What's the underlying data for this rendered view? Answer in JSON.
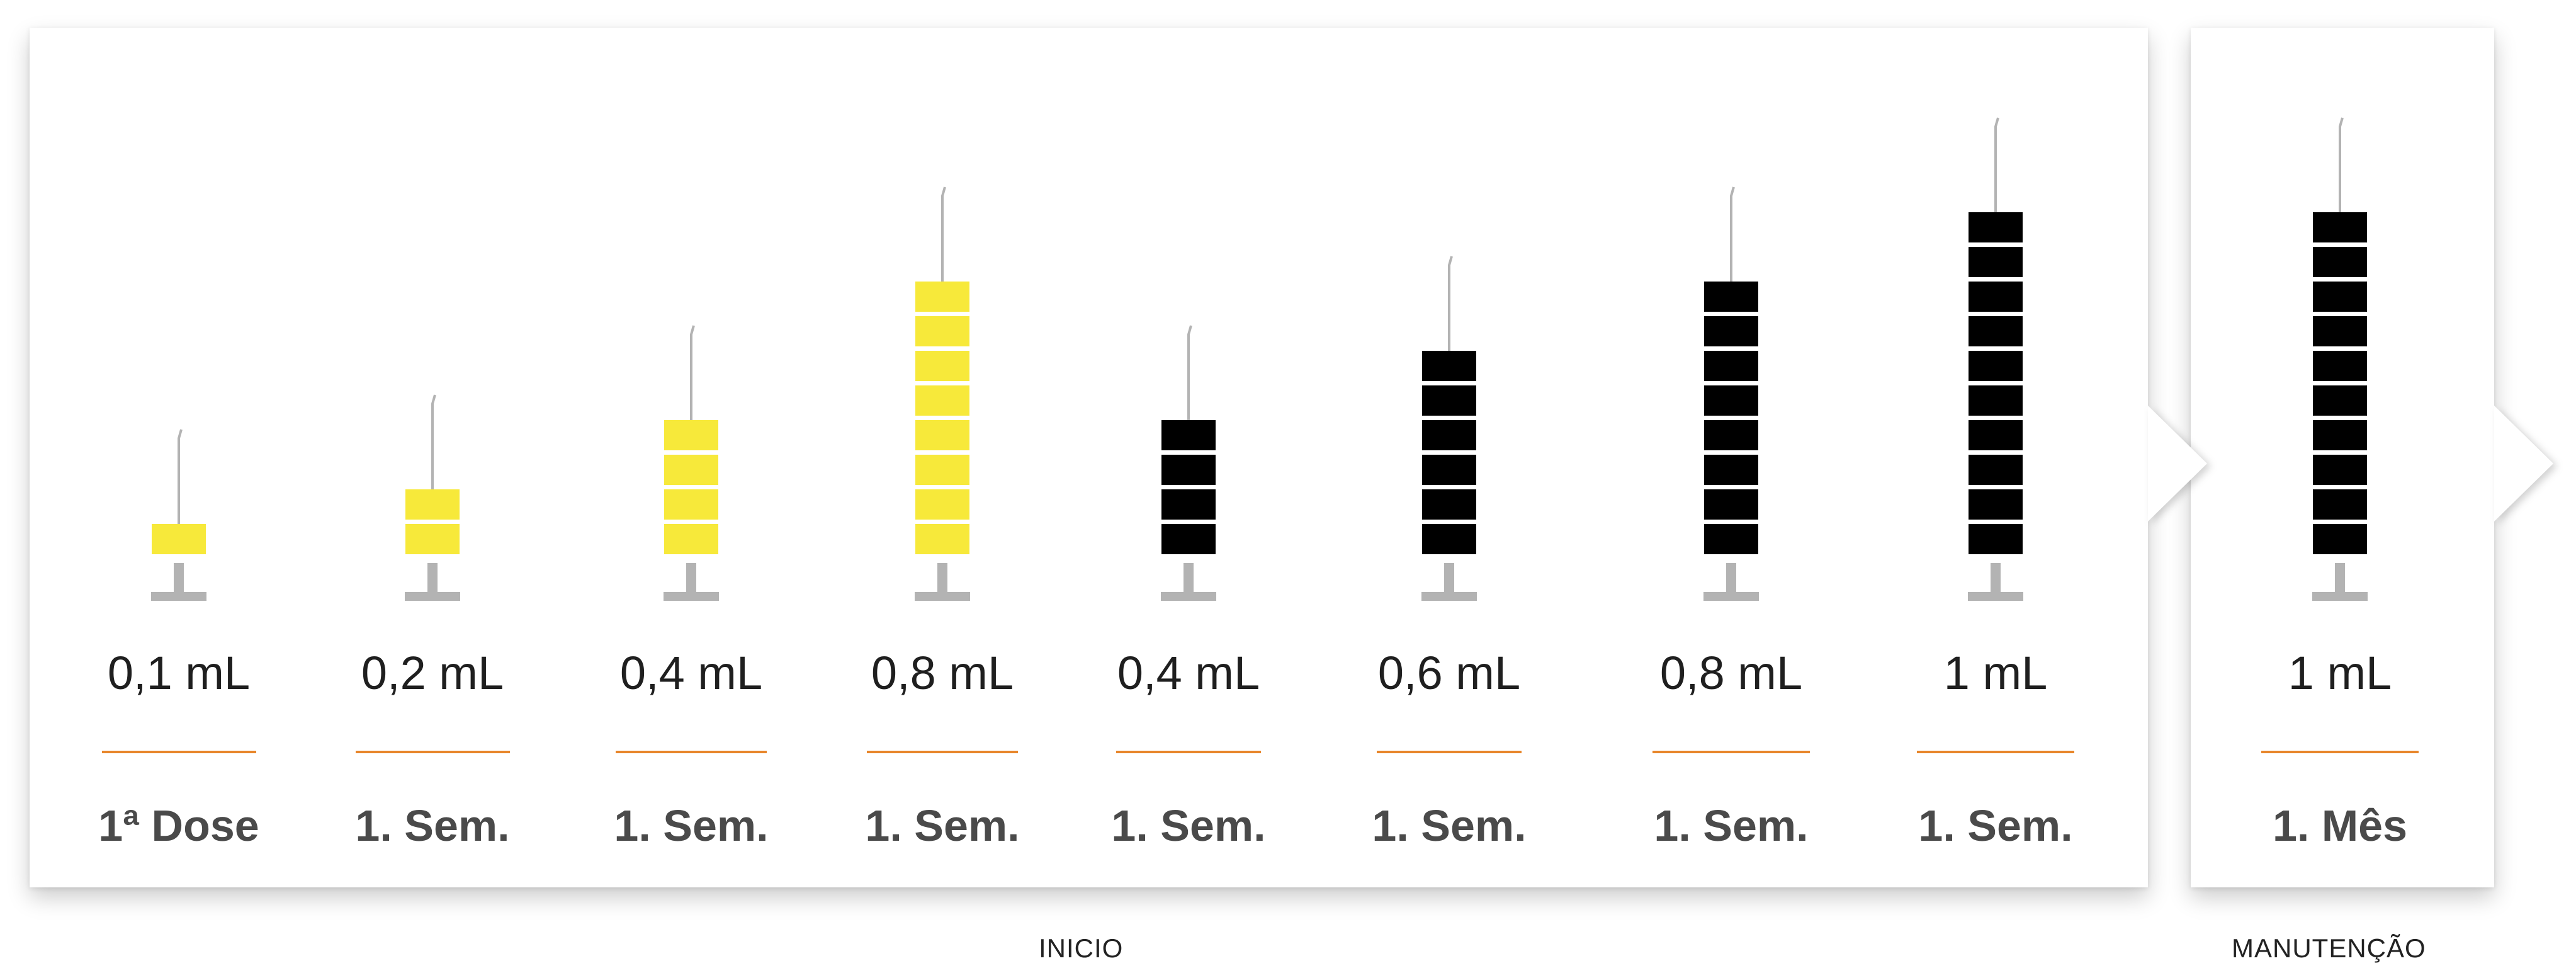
{
  "colors": {
    "fill_inicio_1": "#f7e93a",
    "fill_inicio_2": "#000000",
    "needle": "#b3b3b3",
    "stand": "#b3b3b3",
    "separator": "#e8862b"
  },
  "phases": [
    {
      "label": "INICIO"
    },
    {
      "label": "MANUTENÇÃO"
    }
  ],
  "doses": [
    {
      "volume": "0,1 mL",
      "period": "1ª Dose",
      "units": 1,
      "color": "#f7e93a"
    },
    {
      "volume": "0,2 mL",
      "period": "1. Sem.",
      "units": 2,
      "color": "#f7e93a"
    },
    {
      "volume": "0,4 mL",
      "period": "1. Sem.",
      "units": 4,
      "color": "#f7e93a"
    },
    {
      "volume": "0,8 mL",
      "period": "1. Sem.",
      "units": 8,
      "color": "#f7e93a"
    },
    {
      "volume": "0,4 mL",
      "period": "1. Sem.",
      "units": 4,
      "color": "#000000"
    },
    {
      "volume": "0,6 mL",
      "period": "1. Sem.",
      "units": 6,
      "color": "#000000"
    },
    {
      "volume": "0,8 mL",
      "period": "1. Sem.",
      "units": 8,
      "color": "#000000"
    },
    {
      "volume": "1 mL",
      "period": "1. Sem.",
      "units": 10,
      "color": "#000000"
    },
    {
      "volume": "1 mL",
      "period": "1. Mês",
      "units": 10,
      "color": "#000000"
    }
  ]
}
